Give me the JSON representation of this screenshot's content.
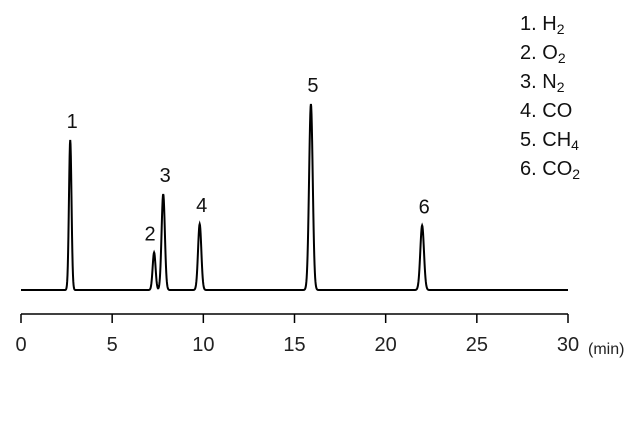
{
  "chart_data": {
    "type": "line",
    "xlabel": "(min)",
    "xlim": [
      0,
      30
    ],
    "x_ticks": [
      "0",
      "5",
      "10",
      "15",
      "20",
      "25",
      "30"
    ],
    "grid": false,
    "legend_position": "top-right",
    "line_color": "#000000",
    "baseline": 0,
    "peaks": [
      {
        "label": "1",
        "retention_time": 2.7,
        "height": 100,
        "width": 0.07
      },
      {
        "label": "2",
        "retention_time": 7.3,
        "height": 25,
        "width": 0.08
      },
      {
        "label": "3",
        "retention_time": 7.8,
        "height": 64,
        "width": 0.09
      },
      {
        "label": "4",
        "retention_time": 9.8,
        "height": 44,
        "width": 0.09
      },
      {
        "label": "5",
        "retention_time": 15.9,
        "height": 124,
        "width": 0.1
      },
      {
        "label": "6",
        "retention_time": 22.0,
        "height": 43,
        "width": 0.1
      }
    ],
    "legend": [
      {
        "number": "1.",
        "base": "H",
        "sub": "2"
      },
      {
        "number": "2.",
        "base": "O",
        "sub": "2"
      },
      {
        "number": "3.",
        "base": "N",
        "sub": "2"
      },
      {
        "number": "4.",
        "base": "CO",
        "sub": ""
      },
      {
        "number": "5.",
        "base": "CH",
        "sub": "4"
      },
      {
        "number": "6.",
        "base": "CO",
        "sub": "2"
      }
    ]
  }
}
